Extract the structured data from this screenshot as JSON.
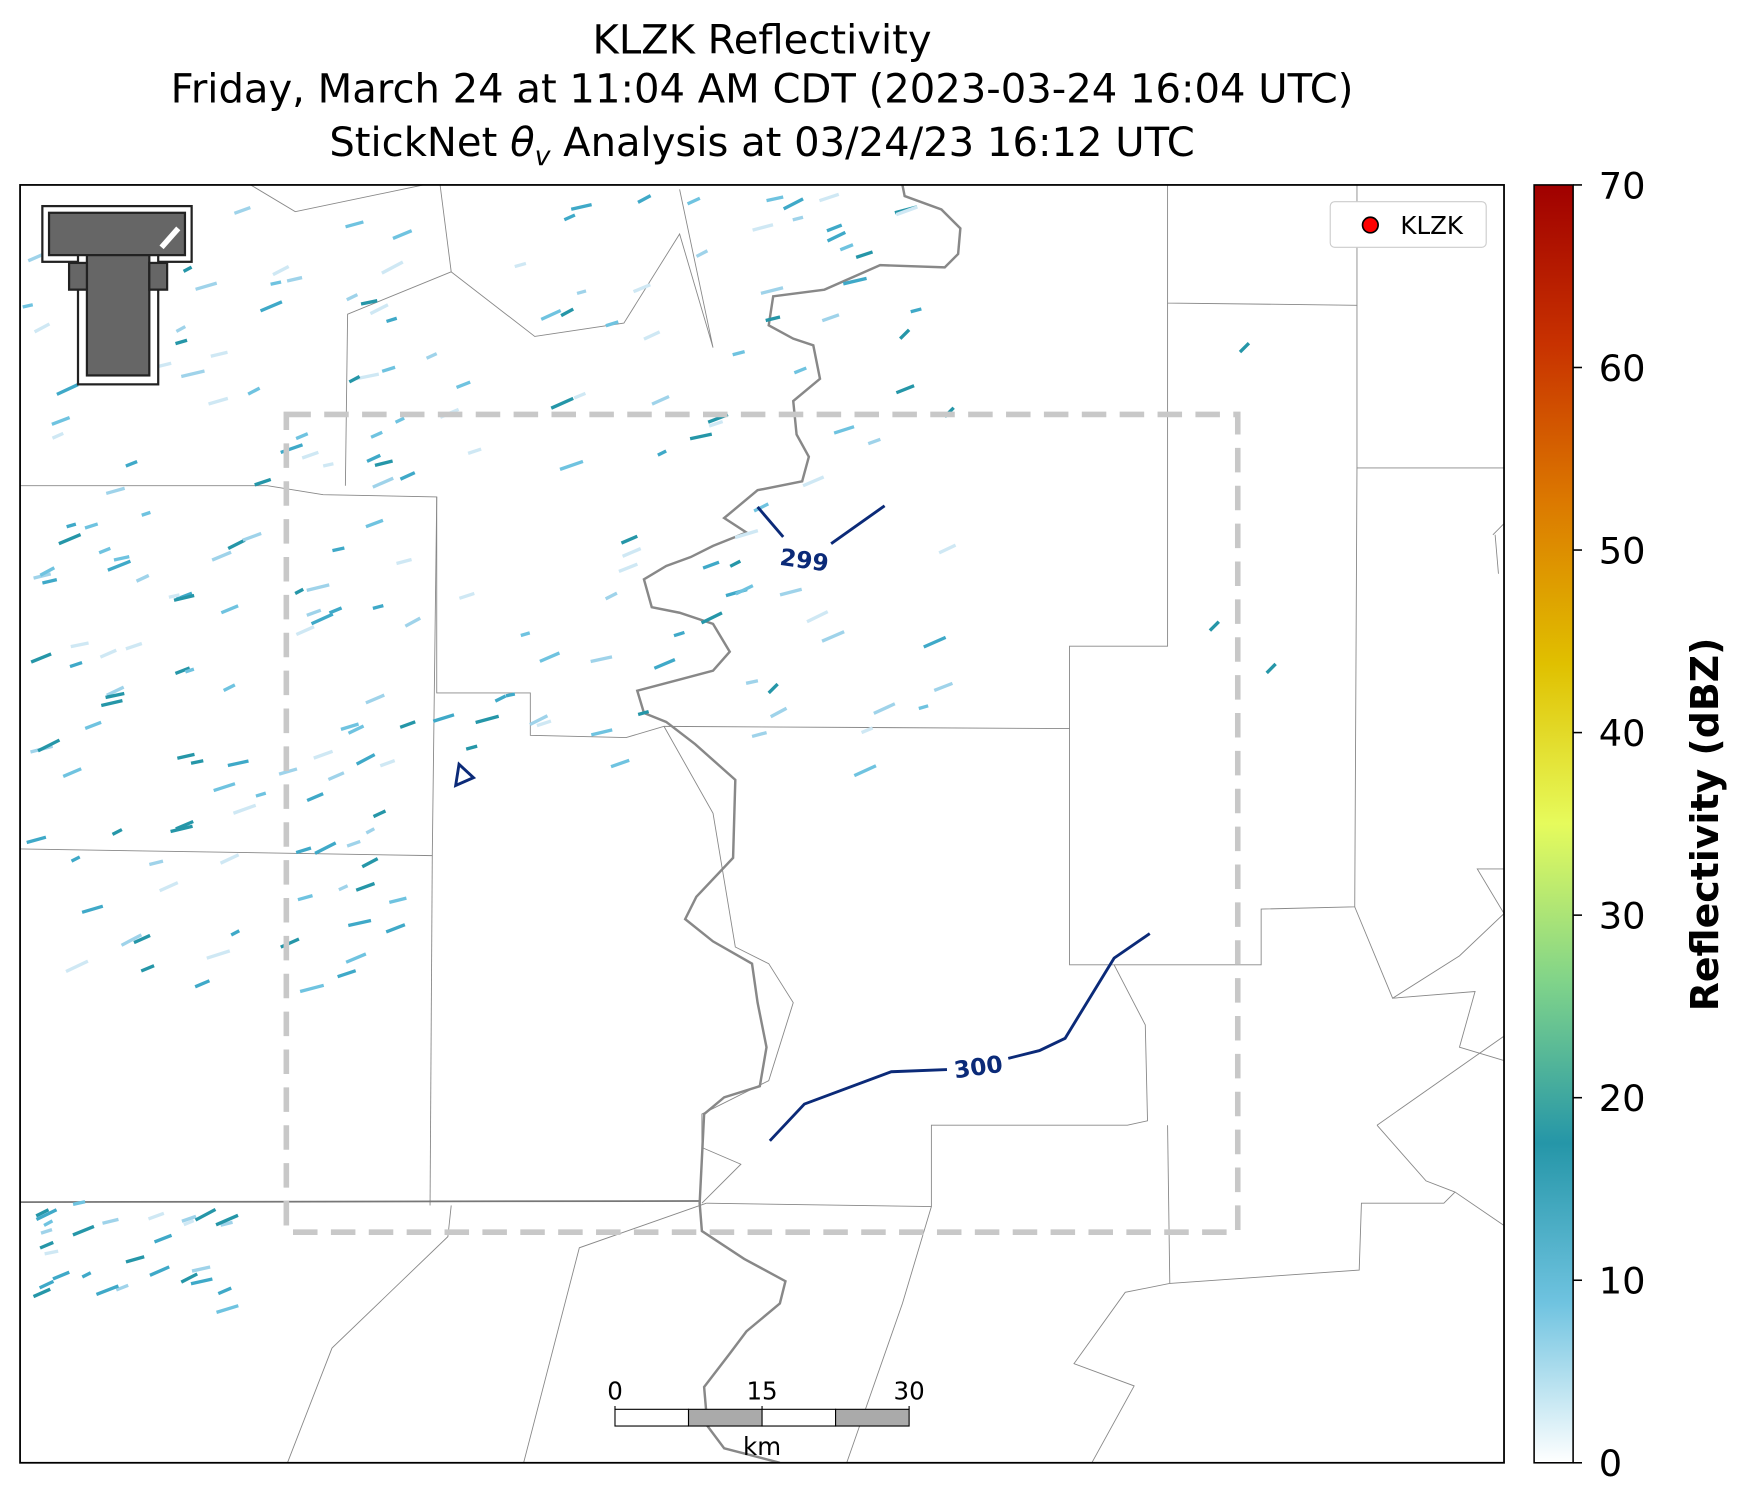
{
  "title_lines": [
    "KLZK Reflectivity",
    "Friday, March 24 at 11:04 AM CDT (2023-03-24 16:04 UTC)"
  ],
  "analysis_title": {
    "prefix": "StickNet ",
    "symbol": "θ",
    "subscript": "v",
    "suffix": " Analysis at 03/24/23 16:12 UTC"
  },
  "legend": {
    "label": "KLZK",
    "color": "#ff0000"
  },
  "contours": {
    "color": "#0b2a78",
    "levels": [
      299,
      300
    ]
  },
  "scale_bar": {
    "ticks": [
      0,
      15,
      30
    ],
    "unit": "km"
  },
  "colorbar": {
    "label": "Reflectivity (dBZ)",
    "lim": [
      0,
      70
    ],
    "ticks": [
      0,
      10,
      20,
      30,
      40,
      50,
      60,
      70
    ],
    "colors": [
      "#ffffff",
      "#6fc3e0",
      "#2596a8",
      "#7fd38a",
      "#e6fb5c",
      "#e0c000",
      "#dc7a00",
      "#c83200",
      "#a00000"
    ]
  }
}
